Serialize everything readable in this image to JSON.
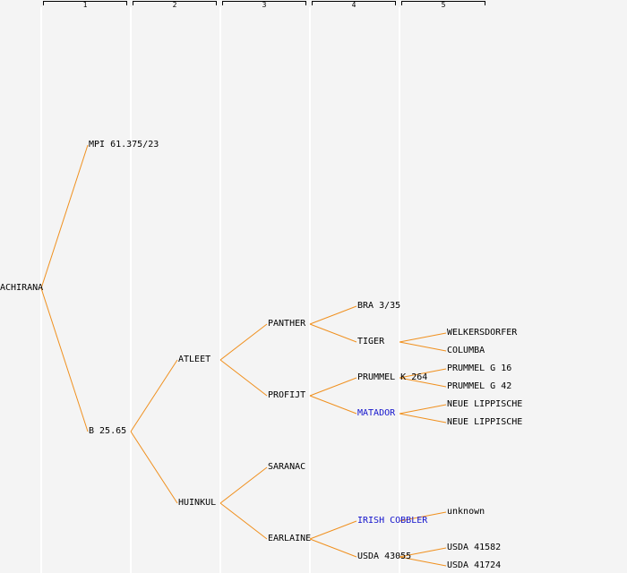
{
  "generations": [
    "1",
    "2",
    "3",
    "4",
    "5"
  ],
  "colors": {
    "branch": "#f0901e",
    "column_line": "#ffffff",
    "link_text": "#1414cc",
    "background": "#f4f4f4"
  },
  "nodes": {
    "root": {
      "label": "ACHIRANA"
    },
    "g1_mother": {
      "label": "MPI 61.375/23"
    },
    "g1_father": {
      "label": "B 25.65"
    },
    "g2_atleet": {
      "label": "ATLEET"
    },
    "g2_huinkul": {
      "label": "HUINKUL"
    },
    "g3_panther": {
      "label": "PANTHER"
    },
    "g3_profijt": {
      "label": "PROFIJT"
    },
    "g3_saranac": {
      "label": "SARANAC"
    },
    "g3_earlaine": {
      "label": "EARLAINE"
    },
    "g4_bra": {
      "label": "BRA 3/35"
    },
    "g4_tiger": {
      "label": "TIGER"
    },
    "g4_prummel_k": {
      "label": "PRUMMEL K 264"
    },
    "g4_matador": {
      "label": "MATADOR",
      "link": true
    },
    "g4_irish_cobbler": {
      "label": "IRISH COBBLER",
      "link": true
    },
    "g4_usda_43055": {
      "label": "USDA 43055"
    },
    "g5_welkersdorfer": {
      "label": "WELKERSDORFER"
    },
    "g5_columba": {
      "label": "COLUMBA"
    },
    "g5_prummel_g16": {
      "label": "PRUMMEL G 16"
    },
    "g5_prummel_g42": {
      "label": "PRUMMEL G 42"
    },
    "g5_neue_1": {
      "label": "NEUE LIPPISCHE"
    },
    "g5_neue_2": {
      "label": "NEUE LIPPISCHE"
    },
    "g5_unknown": {
      "label": "unknown"
    },
    "g5_usda_41582": {
      "label": "USDA 41582"
    },
    "g5_usda_41724": {
      "label": "USDA 41724"
    }
  }
}
